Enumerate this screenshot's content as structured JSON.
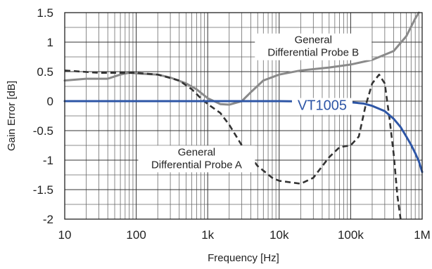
{
  "chart_data": {
    "type": "line",
    "xscale": "log",
    "xlim": [
      10,
      1000000
    ],
    "ylim": [
      -2,
      1.5
    ],
    "xlabel": "Frequency [Hz]",
    "ylabel": "Gain Error [dB]",
    "x_ticks": [
      {
        "v": 10,
        "label": "10"
      },
      {
        "v": 100,
        "label": "100"
      },
      {
        "v": 1000,
        "label": "1k"
      },
      {
        "v": 10000,
        "label": "10k"
      },
      {
        "v": 100000,
        "label": "100k"
      },
      {
        "v": 1000000,
        "label": "1M"
      }
    ],
    "y_ticks": [
      {
        "v": 1.5,
        "label": "1.5"
      },
      {
        "v": 1,
        "label": "1"
      },
      {
        "v": 0.5,
        "label": "0.5"
      },
      {
        "v": 0,
        "label": "0"
      },
      {
        "v": -0.5,
        "label": "-0.5"
      },
      {
        "v": -1,
        "label": "-1"
      },
      {
        "v": -1.5,
        "label": "-1.5"
      },
      {
        "v": -2,
        "label": "-2"
      }
    ],
    "grid": true,
    "series": [
      {
        "name": "VT1005",
        "color": "#2e56a6",
        "style": "solid",
        "points": [
          [
            10,
            0.0
          ],
          [
            100,
            0.0
          ],
          [
            1000,
            0.0
          ],
          [
            10000,
            0.0
          ],
          [
            50000,
            -0.01
          ],
          [
            100000,
            -0.02
          ],
          [
            150000,
            -0.04
          ],
          [
            200000,
            -0.08
          ],
          [
            300000,
            -0.17
          ],
          [
            400000,
            -0.3
          ],
          [
            500000,
            -0.44
          ],
          [
            600000,
            -0.6
          ],
          [
            700000,
            -0.74
          ],
          [
            800000,
            -0.88
          ],
          [
            900000,
            -1.02
          ],
          [
            1000000,
            -1.2
          ]
        ]
      },
      {
        "name": "General Differential Probe A",
        "color": "#333333",
        "style": "dashed",
        "points": [
          [
            10,
            0.52
          ],
          [
            30,
            0.48
          ],
          [
            60,
            0.48
          ],
          [
            100,
            0.48
          ],
          [
            200,
            0.45
          ],
          [
            400,
            0.35
          ],
          [
            600,
            0.2
          ],
          [
            800,
            0.05
          ],
          [
            1000,
            -0.05
          ],
          [
            1500,
            -0.2
          ],
          [
            2000,
            -0.4
          ],
          [
            3000,
            -0.75
          ],
          [
            5000,
            -1.1
          ],
          [
            8000,
            -1.3
          ],
          [
            10000,
            -1.35
          ],
          [
            20000,
            -1.4
          ],
          [
            30000,
            -1.3
          ],
          [
            50000,
            -0.95
          ],
          [
            70000,
            -0.78
          ],
          [
            100000,
            -0.75
          ],
          [
            130000,
            -0.6
          ],
          [
            160000,
            -0.1
          ],
          [
            200000,
            0.3
          ],
          [
            250000,
            0.45
          ],
          [
            300000,
            0.3
          ],
          [
            350000,
            -0.3
          ],
          [
            400000,
            -0.9
          ],
          [
            450000,
            -1.6
          ],
          [
            500000,
            -2.0
          ]
        ]
      },
      {
        "name": "General Differential Probe B",
        "color": "#8a8a8a",
        "style": "solid",
        "points": [
          [
            10,
            0.35
          ],
          [
            20,
            0.38
          ],
          [
            40,
            0.38
          ],
          [
            60,
            0.45
          ],
          [
            80,
            0.48
          ],
          [
            100,
            0.47
          ],
          [
            200,
            0.45
          ],
          [
            300,
            0.4
          ],
          [
            500,
            0.3
          ],
          [
            700,
            0.2
          ],
          [
            1000,
            0.05
          ],
          [
            1500,
            -0.05
          ],
          [
            2000,
            -0.06
          ],
          [
            3000,
            0.0
          ],
          [
            4000,
            0.15
          ],
          [
            6000,
            0.35
          ],
          [
            10000,
            0.45
          ],
          [
            20000,
            0.52
          ],
          [
            50000,
            0.57
          ],
          [
            100000,
            0.62
          ],
          [
            200000,
            0.7
          ],
          [
            400000,
            0.85
          ],
          [
            600000,
            1.1
          ],
          [
            800000,
            1.4
          ],
          [
            900000,
            1.5
          ]
        ]
      }
    ],
    "annotations": [
      {
        "lines": [
          "General",
          "Differential Probe B"
        ],
        "x": 30000,
        "y": 0.92,
        "align": "middle",
        "series": 2
      },
      {
        "lines": [
          "VT1005"
        ],
        "x": 40000,
        "y": -0.09,
        "align": "middle",
        "series": 0
      },
      {
        "lines": [
          "General",
          "Differential Probe A"
        ],
        "x": 700,
        "y": -0.98,
        "align": "middle",
        "series": 1
      }
    ]
  }
}
